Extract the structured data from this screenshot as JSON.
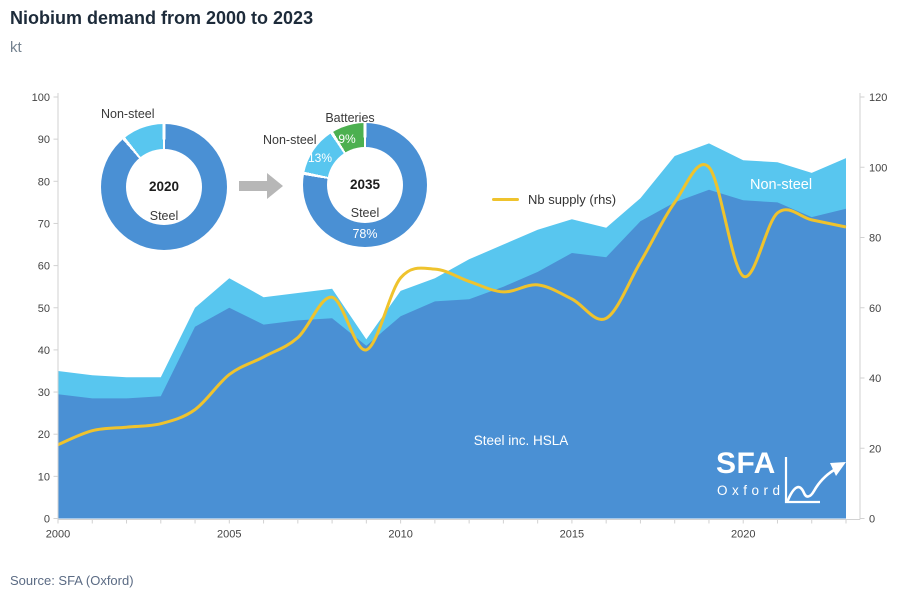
{
  "header": {
    "title": "Niobium demand from 2000 to 2023",
    "subtitle": "kt"
  },
  "legend": {
    "label": "Nb supply (rhs)"
  },
  "annotations": {
    "non_steel_area": "Non-steel",
    "steel_area": "Steel inc. HSLA"
  },
  "donuts": [
    {
      "year": "2020",
      "inner_label": "Steel",
      "outer_label": "Non-steel",
      "slices": [
        {
          "name": "Steel",
          "pct": 89,
          "color": "#4a90d4"
        },
        {
          "name": "Non-steel",
          "pct": 11,
          "color": "#58c6ef"
        }
      ]
    },
    {
      "year": "2035",
      "inner_label": "Steel",
      "labels": {
        "batteries": "Batteries",
        "batteries_pct": "9%",
        "non_steel": "Non-steel",
        "non_steel_pct": "13%",
        "steel_pct": "78%"
      },
      "slices": [
        {
          "name": "Steel",
          "pct": 78,
          "color": "#4a90d4"
        },
        {
          "name": "Non-steel",
          "pct": 13,
          "color": "#58c6ef"
        },
        {
          "name": "Batteries",
          "pct": 9,
          "color": "#4cb050"
        }
      ]
    }
  ],
  "logo": {
    "title": "SFA",
    "subtitle": "Oxford"
  },
  "source": "Source: SFA (Oxford)",
  "colors": {
    "steel": "#4a90d4",
    "non_steel": "#58c6ef",
    "supply": "#efc32d",
    "batteries": "#4cb050",
    "axis": "#d2d2d2",
    "tick_text": "#444444"
  },
  "chart_data": {
    "type": "area",
    "title": "Niobium demand from 2000 to 2023",
    "unit_left": "kt",
    "x": [
      2000,
      2001,
      2002,
      2003,
      2004,
      2005,
      2006,
      2007,
      2008,
      2009,
      2010,
      2011,
      2012,
      2013,
      2014,
      2015,
      2016,
      2017,
      2018,
      2019,
      2020,
      2021,
      2022,
      2023
    ],
    "series": [
      {
        "name": "Steel inc. HSLA",
        "kind": "area",
        "axis": "left",
        "color": "#4a90d4",
        "values": [
          29.5,
          28.5,
          28.5,
          29,
          45.5,
          50,
          46,
          47,
          47.5,
          41,
          48,
          51.5,
          52,
          55,
          58.5,
          63,
          62,
          70.5,
          75,
          78,
          75.5,
          75,
          71.5,
          73.5
        ]
      },
      {
        "name": "Non-steel",
        "kind": "area-stacked",
        "axis": "left",
        "color": "#58c6ef",
        "values": [
          5.5,
          5.5,
          5,
          4.5,
          4.5,
          7,
          6.5,
          6.5,
          7,
          1.5,
          6,
          5.5,
          9.5,
          10,
          10,
          8,
          7,
          5.5,
          11,
          11,
          9.5,
          9.5,
          10.5,
          12
        ]
      },
      {
        "name": "Nb supply (rhs)",
        "kind": "line",
        "axis": "right",
        "color": "#efc32d",
        "values": [
          21,
          25,
          26,
          27,
          31,
          41,
          46,
          51.5,
          63,
          48,
          68.5,
          71,
          67.5,
          64.5,
          66.5,
          62.5,
          57,
          73,
          90,
          100,
          69,
          87,
          85,
          83
        ]
      }
    ],
    "ylim_left": [
      0,
      100
    ],
    "ytick_step_left": 10,
    "ylim_right": [
      0,
      120
    ],
    "ytick_step_right": 20,
    "xticks_labeled": [
      2000,
      2005,
      2010,
      2015,
      2020
    ],
    "grid": false,
    "legend_position": "inside-top-center"
  }
}
